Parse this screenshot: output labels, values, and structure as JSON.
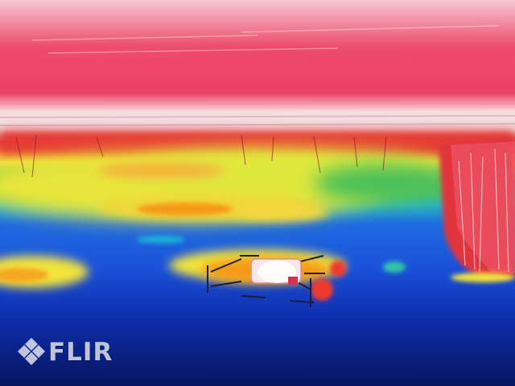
{
  "image": {
    "kind": "thermal-camera-frame",
    "palette": "rainbow-high-contrast",
    "subject": "drone-hovering-over-water"
  },
  "watermark": {
    "brand": "FLIR",
    "icon": "flir-diamond-logo-icon"
  },
  "colors": {
    "hot_white": "#fbe6e6",
    "hot_pink": "#ee3c62",
    "red": "#e6202b",
    "orange": "#f59a19",
    "yellow": "#f2ee38",
    "green": "#3fbf55",
    "cyan": "#1fb0d8",
    "blue": "#1c56df",
    "deep_blue": "#0a2aa5",
    "navy": "#071a68"
  }
}
